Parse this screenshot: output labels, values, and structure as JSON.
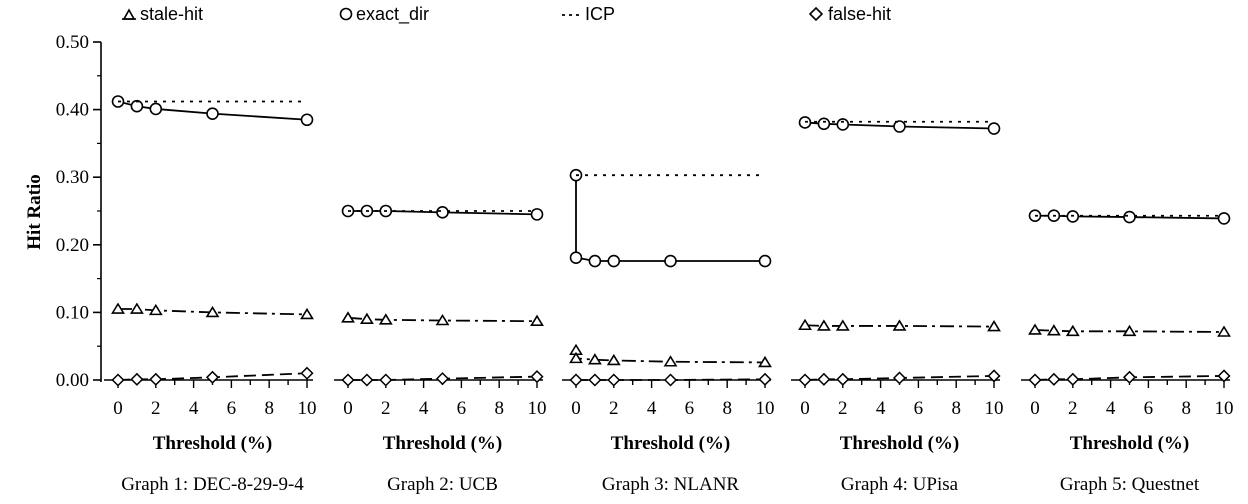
{
  "chart_data": {
    "type": "line",
    "ylabel": "Hit Ratio",
    "ylim": [
      0,
      0.5
    ],
    "yticks": [
      "0.00",
      "0.10",
      "0.20",
      "0.30",
      "0.40",
      "0.50"
    ],
    "xlim": [
      0,
      10
    ],
    "xticks": [
      "0",
      "2",
      "4",
      "6",
      "8",
      "10"
    ],
    "legend": {
      "placement": "top",
      "entries": [
        {
          "name": "stale-hit",
          "symbol": "△"
        },
        {
          "name": "exact_dir",
          "symbol": "○"
        },
        {
          "name": "ICP",
          "symbol": "- - -"
        },
        {
          "name": "false-hit",
          "symbol": "◇"
        }
      ]
    },
    "panels": [
      {
        "xlabel": "Threshold (%)",
        "caption": "Graph 1: DEC-8-29-9-4",
        "x": [
          0,
          1,
          2,
          5,
          10
        ],
        "series": [
          {
            "name": "exact_dir",
            "values": [
              0.412,
              0.405,
              0.401,
              0.394,
              0.385
            ]
          },
          {
            "name": "ICP",
            "values": [
              0.412,
              0.412,
              0.412,
              0.412,
              0.412
            ]
          },
          {
            "name": "stale-hit",
            "values": [
              0.105,
              0.105,
              0.103,
              0.1,
              0.097
            ]
          },
          {
            "name": "false-hit",
            "values": [
              0.0,
              0.001,
              0.001,
              0.004,
              0.01
            ]
          }
        ]
      },
      {
        "xlabel": "Threshold (%)",
        "caption": "Graph 2: UCB",
        "x": [
          0,
          1,
          2,
          5,
          10
        ],
        "series": [
          {
            "name": "exact_dir",
            "values": [
              0.25,
              0.25,
              0.25,
              0.248,
              0.245
            ]
          },
          {
            "name": "ICP",
            "values": [
              0.25,
              0.25,
              0.25,
              0.25,
              0.25
            ]
          },
          {
            "name": "stale-hit",
            "values": [
              0.092,
              0.09,
              0.089,
              0.088,
              0.087
            ]
          },
          {
            "name": "false-hit",
            "values": [
              0.0,
              0.0,
              0.0,
              0.002,
              0.005
            ]
          }
        ]
      },
      {
        "xlabel": "Threshold (%)",
        "caption": "Graph 3: NLANR",
        "x": [
          0,
          1,
          2,
          5,
          10
        ],
        "series": [
          {
            "name": "exact_dir",
            "values": [
              0.303,
              0.181,
              0.176,
              0.176,
              0.176,
              0.176
            ],
            "x": [
              0,
              0,
              1,
              2,
              5,
              10
            ]
          },
          {
            "name": "ICP",
            "values": [
              0.303,
              0.303,
              0.303,
              0.303,
              0.303
            ]
          },
          {
            "name": "stale-hit",
            "values": [
              0.044,
              0.032,
              0.03,
              0.029,
              0.027,
              0.026
            ],
            "x": [
              0,
              0,
              1,
              2,
              5,
              10
            ]
          },
          {
            "name": "false-hit",
            "values": [
              0.0,
              0.0,
              0.0,
              0.0,
              0.001
            ]
          }
        ]
      },
      {
        "xlabel": "Threshold (%)",
        "caption": "Graph 4: UPisa",
        "x": [
          0,
          1,
          2,
          5,
          10
        ],
        "series": [
          {
            "name": "exact_dir",
            "values": [
              0.381,
              0.379,
              0.378,
              0.375,
              0.372
            ]
          },
          {
            "name": "ICP",
            "values": [
              0.382,
              0.382,
              0.382,
              0.382,
              0.382
            ]
          },
          {
            "name": "stale-hit",
            "values": [
              0.081,
              0.08,
              0.08,
              0.08,
              0.079
            ]
          },
          {
            "name": "false-hit",
            "values": [
              0.0,
              0.001,
              0.001,
              0.003,
              0.006
            ]
          }
        ]
      },
      {
        "xlabel": "Threshold (%)",
        "caption": "Graph 5: Questnet",
        "x": [
          0,
          1,
          2,
          5,
          10
        ],
        "series": [
          {
            "name": "exact_dir",
            "values": [
              0.243,
              0.243,
              0.242,
              0.241,
              0.239
            ]
          },
          {
            "name": "ICP",
            "values": [
              0.243,
              0.243,
              0.243,
              0.243,
              0.243
            ]
          },
          {
            "name": "stale-hit",
            "values": [
              0.074,
              0.073,
              0.072,
              0.072,
              0.071
            ]
          },
          {
            "name": "false-hit",
            "values": [
              0.0,
              0.001,
              0.001,
              0.004,
              0.006
            ]
          }
        ]
      }
    ]
  }
}
